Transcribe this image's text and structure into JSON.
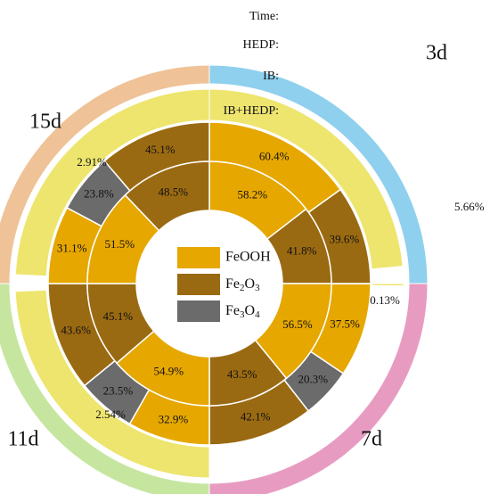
{
  "chart_data": {
    "type": "radial-stacked-bar",
    "row_labels": [
      "Time:",
      "HEDP:",
      "IB:",
      "IB+HEDP:"
    ],
    "legend": [
      {
        "key": "FeOOH",
        "text": "FeOOH",
        "color": "#E6A700"
      },
      {
        "key": "Fe2O3",
        "text": "Fe2O3",
        "color": "#9A6A12"
      },
      {
        "key": "Fe3O4",
        "text": "Fe3O4",
        "color": "#6B6B6B"
      }
    ],
    "hedp_color": "#EDE56E",
    "periods": [
      {
        "label": "3d",
        "time_color": "#8ED0EE",
        "hedp": 5.66,
        "hedp_label": "5.66%",
        "ib": {
          "FeOOH": 60.4,
          "Fe2O3": 39.6,
          "Fe3O4": 0
        },
        "ib_labels": {
          "FeOOH": "60.4%",
          "Fe2O3": "39.6%"
        },
        "ibhedp": {
          "FeOOH": 58.2,
          "Fe2O3": 41.8,
          "Fe3O4": 0
        },
        "ibhedp_labels": {
          "FeOOH": "58.2%",
          "Fe2O3": "41.8%"
        }
      },
      {
        "label": "7d",
        "time_color": "#E89BC0",
        "hedp": 0.13,
        "hedp_label": "0.13%",
        "ib": {
          "FeOOH": 37.5,
          "Fe2O3": 42.1,
          "Fe3O4": 20.3
        },
        "ib_labels": {
          "FeOOH": "37.5%",
          "Fe2O3": "42.1%",
          "Fe3O4": "20.3%"
        },
        "ibhedp": {
          "FeOOH": 56.5,
          "Fe2O3": 43.5,
          "Fe3O4": 0
        },
        "ibhedp_labels": {
          "FeOOH": "56.5%",
          "Fe2O3": "43.5%"
        }
      },
      {
        "label": "11d",
        "time_color": "#C6E6A0",
        "hedp": 2.54,
        "hedp_label": "2.54%",
        "ib": {
          "FeOOH": 32.9,
          "Fe2O3": 43.6,
          "Fe3O4": 23.5
        },
        "ib_labels": {
          "FeOOH": "32.9%",
          "Fe2O3": "43.6%",
          "Fe3O4": "23.5%"
        },
        "ibhedp": {
          "FeOOH": 54.9,
          "Fe2O3": 45.1,
          "Fe3O4": 0
        },
        "ibhedp_labels": {
          "FeOOH": "54.9%",
          "Fe2O3": "45.1%"
        }
      },
      {
        "label": "15d",
        "time_color": "#EFC297",
        "hedp": 2.91,
        "hedp_label": "2.91%",
        "ib": {
          "FeOOH": 31.1,
          "Fe2O3": 45.1,
          "Fe3O4": 23.8
        },
        "ib_labels": {
          "FeOOH": "31.1%",
          "Fe2O3": "45.1%",
          "Fe3O4": "23.8%"
        },
        "ibhedp": {
          "FeOOH": 51.5,
          "Fe2O3": 48.5,
          "Fe3O4": 0
        },
        "ibhedp_labels": {
          "FeOOH": "51.5%",
          "Fe2O3": "48.5%"
        }
      }
    ]
  }
}
